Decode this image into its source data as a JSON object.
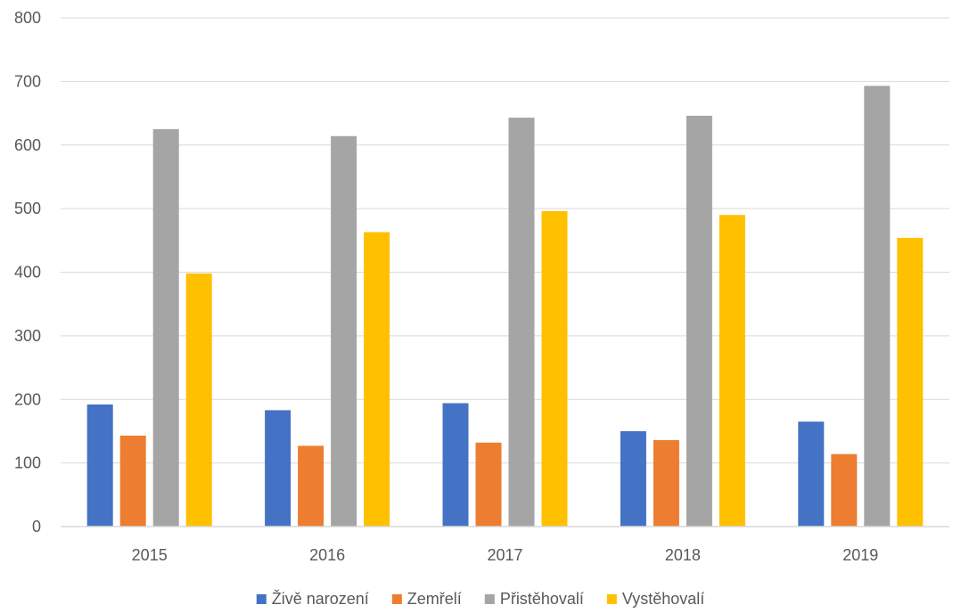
{
  "chart_data": {
    "type": "bar",
    "title": "",
    "xlabel": "",
    "ylabel": "",
    "categories": [
      "2015",
      "2016",
      "2017",
      "2018",
      "2019"
    ],
    "ylim": [
      0,
      800
    ],
    "yticks": [
      0,
      100,
      200,
      300,
      400,
      500,
      600,
      700,
      800
    ],
    "grid": "horizontal",
    "legend": "bottom",
    "series": [
      {
        "name": "Živě narození",
        "color": "#4472C4",
        "values": [
          192,
          183,
          194,
          150,
          165
        ]
      },
      {
        "name": "Zemřelí",
        "color": "#ED7D31",
        "values": [
          143,
          127,
          132,
          136,
          114
        ]
      },
      {
        "name": "Přistěhovalí",
        "color": "#A5A5A5",
        "values": [
          625,
          614,
          643,
          646,
          693
        ]
      },
      {
        "name": "Vystěhovalí",
        "color": "#FFC000",
        "values": [
          398,
          463,
          496,
          490,
          454
        ]
      }
    ]
  }
}
